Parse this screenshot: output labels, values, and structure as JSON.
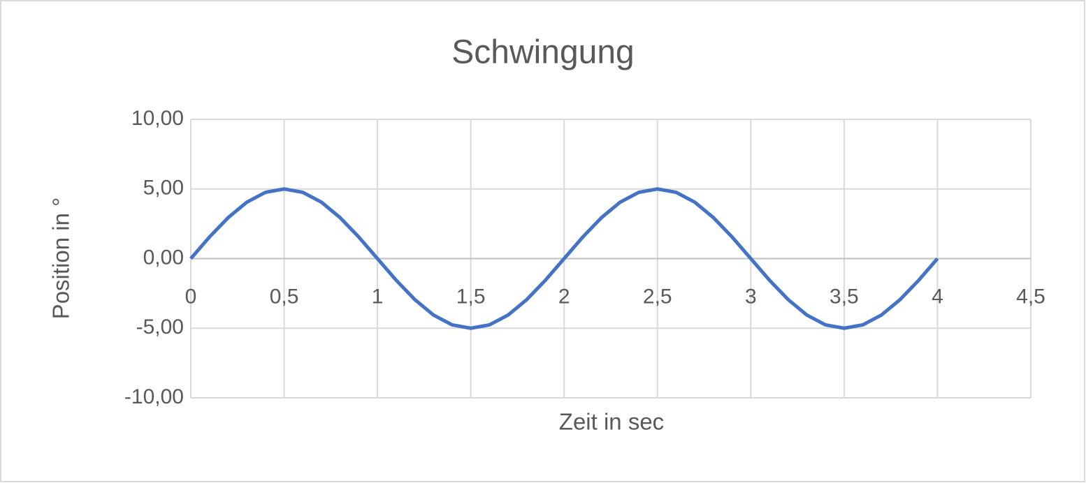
{
  "chart_data": {
    "type": "line",
    "title": "Schwingung",
    "x_label": "Zeit in sec",
    "y_label": "Position in °",
    "x": [
      0,
      0.1,
      0.2,
      0.3,
      0.4,
      0.5,
      0.6,
      0.7,
      0.8,
      0.9,
      1,
      1.1,
      1.2,
      1.3,
      1.4,
      1.5,
      1.6,
      1.7,
      1.8,
      1.9,
      2,
      2.1,
      2.2,
      2.3,
      2.4,
      2.5,
      2.6,
      2.7,
      2.8,
      2.9,
      3,
      3.1,
      3.2,
      3.3,
      3.4,
      3.5,
      3.6,
      3.7,
      3.8,
      3.9,
      4
    ],
    "series": [
      {
        "color": "#4472c4",
        "values": [
          0,
          1.55,
          2.94,
          4.05,
          4.76,
          5,
          4.76,
          4.05,
          2.94,
          1.55,
          0,
          -1.55,
          -2.94,
          -4.05,
          -4.76,
          -5,
          -4.76,
          -4.05,
          -2.94,
          -1.55,
          0,
          1.55,
          2.94,
          4.05,
          4.76,
          5,
          4.76,
          4.05,
          2.94,
          1.55,
          0,
          -1.55,
          -2.94,
          -4.05,
          -4.76,
          -5,
          -4.76,
          -4.05,
          -2.94,
          -1.55,
          0
        ]
      }
    ],
    "xlim": [
      0,
      4.5
    ],
    "xticks": [
      0,
      {
        "value": 0.5,
        "label": "0,5"
      },
      1,
      {
        "value": 1.5,
        "label": "1,5"
      },
      2,
      {
        "value": 2.5,
        "label": "2,5"
      },
      3,
      {
        "value": 3.5,
        "label": "3,5"
      },
      4,
      {
        "value": 4.5,
        "label": "4,5"
      }
    ],
    "ylim": [
      -10,
      10
    ],
    "yticks": [
      {
        "value": -10,
        "label": "-10,00"
      },
      {
        "value": -5,
        "label": "-5,00"
      },
      {
        "value": 0,
        "label": "0,00"
      },
      {
        "value": 5,
        "label": "5,00"
      },
      {
        "value": 10,
        "label": "10,00"
      }
    ],
    "grid": true
  }
}
